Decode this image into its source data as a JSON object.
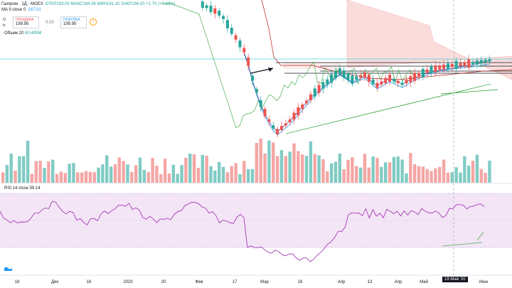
{
  "legend": {
    "title": "Газпром · 1Д · MOEX",
    "ohlc": "ОТКР193.00  МАКС194.39  МИН191.10  ЗАКР194.20  +1.70 (+0.88%)",
    "ma_label": "MA 9 close 0",
    "ma_value": "187.01",
    "volume_label": "Объем 20",
    "volume_value": "60.405M",
    "rsi_label": "RSI 14 close",
    "rsi_value": "59.14"
  },
  "trade": {
    "sell_label": "ПРОДАЖА",
    "sell_value": "199.95",
    "spread": "0.00",
    "buy_label": "ПОКУПКА",
    "buy_value": "199.95"
  },
  "side_labels": [
    "О",
    "Іс"
  ],
  "x_axis": [
    "18",
    "Дек",
    "16",
    "2020",
    "20",
    "Фев",
    "17",
    "Мар",
    "16",
    "Апр",
    "13",
    "Апр",
    "Май",
    "19 Май '20",
    "Июн"
  ],
  "date_badge": "19 Май '20",
  "colors": {
    "up": "#26a69a",
    "down": "#ef5350",
    "rsi": "#9c27b0",
    "rsi_band": "#f3e5f5",
    "ma_blue": "#2196f3",
    "cloud_red": "#f8d0cc",
    "kijun": "#b71c1c",
    "chikou": "#4caf50"
  },
  "icons": [
    "info-icon",
    "tradingview-logo-icon"
  ]
}
